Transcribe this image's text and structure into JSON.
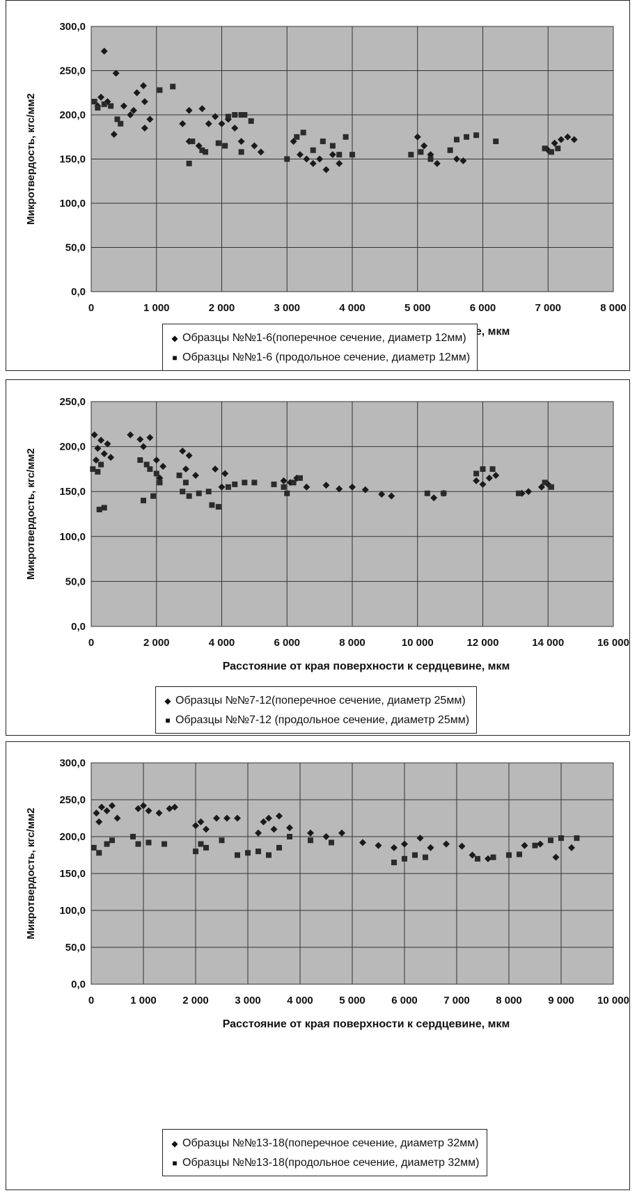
{
  "chart_data": [
    {
      "type": "scatter",
      "title": "",
      "xlabel": "Расстояние от края поверхности к сердцевине, мкм",
      "ylabel": "Микротвердость, кгс/мм2",
      "xlim": [
        0,
        8000
      ],
      "ylim": [
        0,
        300
      ],
      "xticks": [
        0,
        1000,
        2000,
        3000,
        4000,
        5000,
        6000,
        7000,
        8000
      ],
      "xtick_labels": [
        "0",
        "1 000",
        "2 000",
        "3 000",
        "4 000",
        "5 000",
        "6 000",
        "7 000",
        "8 000"
      ],
      "yticks": [
        0,
        50,
        100,
        150,
        200,
        250,
        300
      ],
      "ytick_labels": [
        "0,0",
        "50,0",
        "100,0",
        "150,0",
        "200,0",
        "250,0",
        "300,0"
      ],
      "grid": true,
      "legend_placement": "bottom",
      "series": [
        {
          "name": "Образцы №№1-6(поперечное сечение, диаметр 12мм)",
          "marker": "diamond",
          "points": [
            [
              200,
              272
            ],
            [
              380,
              247
            ],
            [
              150,
              220
            ],
            [
              250,
              215
            ],
            [
              600,
              200
            ],
            [
              700,
              225
            ],
            [
              800,
              233
            ],
            [
              820,
              215
            ],
            [
              900,
              195
            ],
            [
              350,
              178
            ],
            [
              820,
              185
            ],
            [
              100,
              210
            ],
            [
              500,
              210
            ],
            [
              650,
              205
            ],
            [
              1400,
              190
            ],
            [
              1500,
              205
            ],
            [
              1700,
              207
            ],
            [
              1800,
              190
            ],
            [
              1500,
              170
            ],
            [
              1650,
              165
            ],
            [
              1900,
              198
            ],
            [
              2000,
              190
            ],
            [
              2100,
              195
            ],
            [
              2200,
              185
            ],
            [
              2300,
              170
            ],
            [
              2500,
              165
            ],
            [
              2600,
              158
            ],
            [
              3100,
              170
            ],
            [
              3200,
              155
            ],
            [
              3300,
              150
            ],
            [
              3400,
              145
            ],
            [
              3500,
              150
            ],
            [
              3600,
              138
            ],
            [
              3700,
              155
            ],
            [
              3800,
              145
            ],
            [
              5000,
              175
            ],
            [
              5100,
              165
            ],
            [
              5200,
              155
            ],
            [
              5300,
              145
            ],
            [
              5600,
              150
            ],
            [
              5700,
              148
            ],
            [
              7000,
              160
            ],
            [
              7100,
              168
            ],
            [
              7200,
              172
            ],
            [
              7300,
              175
            ],
            [
              7400,
              172
            ]
          ]
        },
        {
          "name": "Образцы №№1-6 (продольное сечение, диаметр 12мм)",
          "marker": "square",
          "points": [
            [
              50,
              215
            ],
            [
              100,
              208
            ],
            [
              200,
              212
            ],
            [
              300,
              210
            ],
            [
              400,
              195
            ],
            [
              450,
              190
            ],
            [
              1050,
              228
            ],
            [
              1250,
              232
            ],
            [
              1500,
              145
            ],
            [
              1550,
              170
            ],
            [
              1700,
              160
            ],
            [
              1750,
              158
            ],
            [
              1950,
              168
            ],
            [
              2050,
              165
            ],
            [
              2100,
              198
            ],
            [
              2200,
              200
            ],
            [
              2300,
              200
            ],
            [
              2350,
              200
            ],
            [
              2450,
              193
            ],
            [
              2300,
              158
            ],
            [
              3000,
              150
            ],
            [
              3150,
              175
            ],
            [
              3250,
              180
            ],
            [
              3400,
              160
            ],
            [
              3550,
              170
            ],
            [
              3700,
              165
            ],
            [
              3800,
              155
            ],
            [
              3900,
              175
            ],
            [
              4000,
              155
            ],
            [
              4900,
              155
            ],
            [
              5050,
              158
            ],
            [
              5200,
              150
            ],
            [
              5500,
              160
            ],
            [
              5600,
              172
            ],
            [
              5750,
              175
            ],
            [
              5900,
              177
            ],
            [
              6200,
              170
            ],
            [
              6950,
              162
            ],
            [
              7050,
              158
            ],
            [
              7150,
              162
            ]
          ]
        }
      ]
    },
    {
      "type": "scatter",
      "title": "",
      "xlabel": "Расстояние от края поверхности к сердцевине, мкм",
      "ylabel": "Микротвердость, кгс/мм2",
      "xlim": [
        0,
        16000
      ],
      "ylim": [
        0,
        250
      ],
      "xticks": [
        0,
        2000,
        4000,
        6000,
        8000,
        10000,
        12000,
        14000,
        16000
      ],
      "xtick_labels": [
        "0",
        "2 000",
        "4 000",
        "6 000",
        "8 000",
        "10 000",
        "12 000",
        "14 000",
        "16 000"
      ],
      "yticks": [
        0,
        50,
        100,
        150,
        200,
        250
      ],
      "ytick_labels": [
        "0,0",
        "50,0",
        "100,0",
        "150,0",
        "200,0",
        "250,0"
      ],
      "grid": true,
      "legend_placement": "bottom",
      "series": [
        {
          "name": "Образцы №№7-12(поперечное сечение, диаметр 25мм)",
          "marker": "diamond",
          "points": [
            [
              100,
              213
            ],
            [
              300,
              207
            ],
            [
              500,
              203
            ],
            [
              200,
              198
            ],
            [
              400,
              192
            ],
            [
              600,
              188
            ],
            [
              150,
              185
            ],
            [
              1200,
              213
            ],
            [
              1500,
              208
            ],
            [
              1800,
              210
            ],
            [
              1600,
              200
            ],
            [
              2000,
              185
            ],
            [
              2200,
              178
            ],
            [
              2100,
              165
            ],
            [
              2800,
              195
            ],
            [
              3000,
              190
            ],
            [
              2900,
              175
            ],
            [
              3200,
              168
            ],
            [
              3800,
              175
            ],
            [
              4100,
              170
            ],
            [
              4000,
              155
            ],
            [
              5900,
              162
            ],
            [
              6100,
              160
            ],
            [
              6300,
              165
            ],
            [
              6600,
              155
            ],
            [
              7200,
              157
            ],
            [
              7600,
              153
            ],
            [
              8000,
              155
            ],
            [
              8400,
              152
            ],
            [
              8900,
              147
            ],
            [
              9200,
              145
            ],
            [
              10500,
              143
            ],
            [
              10800,
              148
            ],
            [
              11800,
              162
            ],
            [
              12000,
              158
            ],
            [
              12200,
              165
            ],
            [
              12400,
              168
            ],
            [
              13200,
              148
            ],
            [
              13400,
              150
            ],
            [
              13800,
              155
            ],
            [
              14000,
              158
            ]
          ]
        },
        {
          "name": "Образцы №№7-12 (продольное сечение, диаметр 25мм)",
          "marker": "square",
          "points": [
            [
              50,
              175
            ],
            [
              200,
              172
            ],
            [
              300,
              180
            ],
            [
              250,
              130
            ],
            [
              400,
              132
            ],
            [
              1500,
              185
            ],
            [
              1700,
              180
            ],
            [
              1800,
              175
            ],
            [
              2000,
              170
            ],
            [
              2100,
              160
            ],
            [
              1600,
              140
            ],
            [
              1900,
              145
            ],
            [
              2700,
              168
            ],
            [
              2900,
              160
            ],
            [
              2800,
              150
            ],
            [
              3000,
              145
            ],
            [
              3300,
              148
            ],
            [
              3600,
              150
            ],
            [
              3700,
              135
            ],
            [
              3900,
              133
            ],
            [
              4200,
              155
            ],
            [
              4400,
              158
            ],
            [
              4700,
              160
            ],
            [
              5000,
              160
            ],
            [
              5600,
              158
            ],
            [
              5900,
              155
            ],
            [
              6000,
              148
            ],
            [
              6200,
              160
            ],
            [
              6400,
              165
            ],
            [
              10300,
              148
            ],
            [
              10800,
              148
            ],
            [
              11800,
              170
            ],
            [
              12000,
              175
            ],
            [
              12300,
              175
            ],
            [
              13100,
              148
            ],
            [
              13900,
              160
            ],
            [
              14100,
              155
            ]
          ]
        }
      ]
    },
    {
      "type": "scatter",
      "title": "",
      "xlabel": "Расстояние от края поверхности к сердцевине, мкм",
      "ylabel": "Микротвердость, кгс/мм2",
      "xlim": [
        0,
        10000
      ],
      "ylim": [
        0,
        300
      ],
      "xticks": [
        0,
        1000,
        2000,
        3000,
        4000,
        5000,
        6000,
        7000,
        8000,
        9000,
        10000
      ],
      "xtick_labels": [
        "0",
        "1 000",
        "2 000",
        "3 000",
        "4 000",
        "5 000",
        "6 000",
        "7 000",
        "8 000",
        "9 000",
        "10 000"
      ],
      "yticks": [
        0,
        50,
        100,
        150,
        200,
        250,
        300
      ],
      "ytick_labels": [
        "0,0",
        "50,0",
        "100,0",
        "150,0",
        "200,0",
        "250,0",
        "300,0"
      ],
      "grid": true,
      "legend_placement": "bottom",
      "series": [
        {
          "name": "Образцы №№13-18(поперечное сечение, диаметр 32мм)",
          "marker": "diamond",
          "points": [
            [
              100,
              232
            ],
            [
              200,
              240
            ],
            [
              300,
              235
            ],
            [
              400,
              242
            ],
            [
              500,
              225
            ],
            [
              150,
              220
            ],
            [
              900,
              238
            ],
            [
              1000,
              242
            ],
            [
              1100,
              235
            ],
            [
              1300,
              232
            ],
            [
              1500,
              238
            ],
            [
              1600,
              240
            ],
            [
              2000,
              215
            ],
            [
              2100,
              220
            ],
            [
              2200,
              210
            ],
            [
              2400,
              225
            ],
            [
              2600,
              225
            ],
            [
              2800,
              225
            ],
            [
              3300,
              220
            ],
            [
              3400,
              225
            ],
            [
              3600,
              228
            ],
            [
              3200,
              205
            ],
            [
              3500,
              210
            ],
            [
              3800,
              212
            ],
            [
              4200,
              205
            ],
            [
              4500,
              200
            ],
            [
              4800,
              205
            ],
            [
              5200,
              192
            ],
            [
              5500,
              188
            ],
            [
              5800,
              185
            ],
            [
              6000,
              190
            ],
            [
              6300,
              198
            ],
            [
              6500,
              185
            ],
            [
              6800,
              190
            ],
            [
              7100,
              187
            ],
            [
              7300,
              175
            ],
            [
              7600,
              170
            ],
            [
              8300,
              188
            ],
            [
              8600,
              190
            ],
            [
              8900,
              172
            ],
            [
              9200,
              185
            ]
          ]
        },
        {
          "name": "Образцы №№13-18(продольное сечение, диаметр 32мм)",
          "marker": "square",
          "points": [
            [
              50,
              185
            ],
            [
              150,
              178
            ],
            [
              300,
              190
            ],
            [
              400,
              195
            ],
            [
              800,
              200
            ],
            [
              900,
              190
            ],
            [
              1100,
              192
            ],
            [
              1400,
              190
            ],
            [
              2000,
              180
            ],
            [
              2100,
              190
            ],
            [
              2200,
              185
            ],
            [
              2500,
              195
            ],
            [
              2800,
              175
            ],
            [
              3000,
              178
            ],
            [
              3200,
              180
            ],
            [
              3400,
              175
            ],
            [
              3600,
              185
            ],
            [
              3800,
              200
            ],
            [
              4200,
              195
            ],
            [
              4600,
              192
            ],
            [
              5800,
              165
            ],
            [
              6000,
              170
            ],
            [
              6200,
              175
            ],
            [
              6400,
              172
            ],
            [
              7400,
              170
            ],
            [
              7700,
              172
            ],
            [
              8000,
              175
            ],
            [
              8200,
              176
            ],
            [
              8500,
              188
            ],
            [
              8800,
              195
            ],
            [
              9000,
              198
            ],
            [
              9300,
              198
            ]
          ]
        }
      ]
    }
  ]
}
